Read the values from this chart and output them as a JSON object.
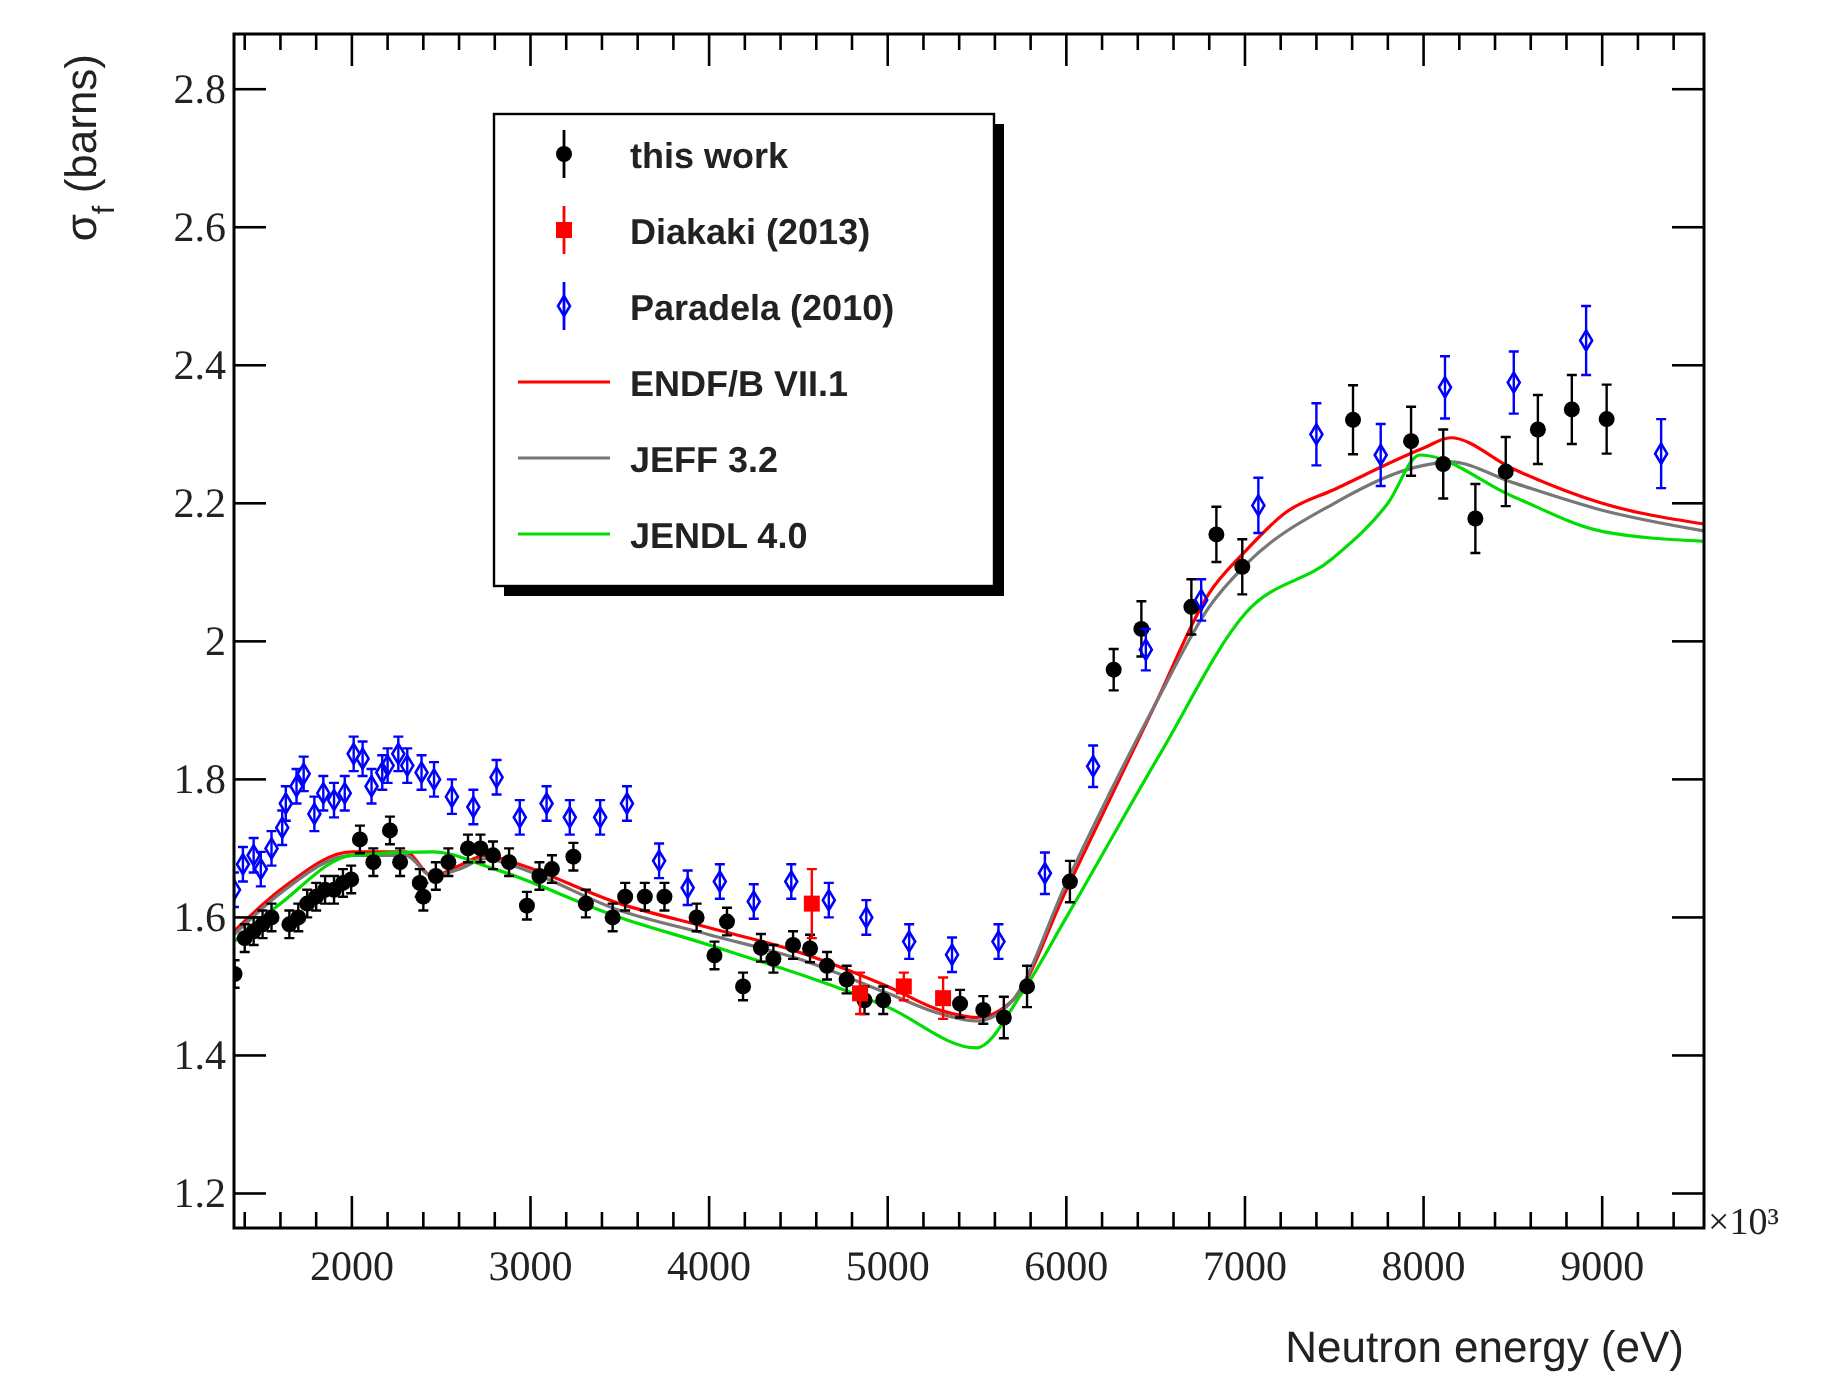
{
  "chart_data": {
    "type": "scatter",
    "xlabel": "Neutron energy (eV)",
    "ylabel": "σ$_{f}$ (barns)",
    "annotations": [
      "×10³"
    ],
    "xlim": [
      1340,
      9570
    ],
    "ylim": [
      1.15,
      2.88
    ],
    "xticks": [
      {
        "value": 1400,
        "label": null
      },
      {
        "value": 1600,
        "label": null
      },
      {
        "value": 1800,
        "label": null
      },
      2000,
      {
        "value": 2200,
        "label": null
      },
      {
        "value": 2400,
        "label": null
      },
      {
        "value": 2600,
        "label": null
      },
      {
        "value": 2800,
        "label": null
      },
      3000,
      {
        "value": 3200,
        "label": null
      },
      {
        "value": 3400,
        "label": null
      },
      {
        "value": 3600,
        "label": null
      },
      {
        "value": 3800,
        "label": null
      },
      4000,
      {
        "value": 4200,
        "label": null
      },
      {
        "value": 4400,
        "label": null
      },
      {
        "value": 4600,
        "label": null
      },
      {
        "value": 4800,
        "label": null
      },
      5000,
      {
        "value": 5200,
        "label": null
      },
      {
        "value": 5400,
        "label": null
      },
      {
        "value": 5600,
        "label": null
      },
      {
        "value": 5800,
        "label": null
      },
      6000,
      {
        "value": 6200,
        "label": null
      },
      {
        "value": 6400,
        "label": null
      },
      {
        "value": 6600,
        "label": null
      },
      {
        "value": 6800,
        "label": null
      },
      7000,
      {
        "value": 7200,
        "label": null
      },
      {
        "value": 7400,
        "label": null
      },
      {
        "value": 7600,
        "label": null
      },
      {
        "value": 7800,
        "label": null
      },
      8000,
      {
        "value": 8200,
        "label": null
      },
      {
        "value": 8400,
        "label": null
      },
      {
        "value": 8600,
        "label": null
      },
      {
        "value": 8800,
        "label": null
      },
      9000,
      {
        "value": 9200,
        "label": null
      },
      {
        "value": 9400,
        "label": null
      }
    ],
    "yticks": [
      1.2,
      1.4,
      1.6,
      1.8,
      2,
      2.2,
      2.4,
      2.6,
      2.8
    ],
    "grid": false,
    "legend": "top left",
    "series": [
      {
        "name": "this work",
        "color": "#000000",
        "marker": "circle",
        "x": [
          1343,
          1400,
          1450,
          1500,
          1550,
          1650,
          1700,
          1750,
          1800,
          1850,
          1900,
          1950,
          1996,
          2045,
          2120,
          2213,
          2270,
          2380,
          2400,
          2470,
          2540,
          2650,
          2720,
          2790,
          2880,
          2980,
          3050,
          3120,
          3240,
          3310,
          3460,
          3530,
          3640,
          3750,
          3930,
          4030,
          4100,
          4190,
          4290,
          4360,
          4470,
          4565,
          4660,
          4770,
          4870,
          4975,
          5405,
          5535,
          5650,
          5780,
          6020,
          6265,
          6420,
          6700,
          6840,
          6985,
          7605,
          7930,
          8110,
          8290,
          8460,
          8640,
          8830,
          9025
        ],
        "values": [
          1.518,
          1.57,
          1.58,
          1.59,
          1.6,
          1.59,
          1.6,
          1.62,
          1.63,
          1.64,
          1.64,
          1.65,
          1.655,
          1.713,
          1.68,
          1.726,
          1.68,
          1.65,
          1.63,
          1.66,
          1.68,
          1.7,
          1.7,
          1.69,
          1.68,
          1.617,
          1.66,
          1.67,
          1.688,
          1.62,
          1.6,
          1.63,
          1.63,
          1.63,
          1.6,
          1.545,
          1.594,
          1.5,
          1.556,
          1.54,
          1.56,
          1.555,
          1.53,
          1.51,
          1.48,
          1.48,
          1.475,
          1.466,
          1.455,
          1.5,
          1.652,
          1.959,
          2.018,
          2.05,
          2.155,
          2.108,
          2.321,
          2.29,
          2.257,
          2.178,
          2.246,
          2.307,
          2.336,
          2.322
        ],
        "errors": [
          0.02,
          0.02,
          0.02,
          0.02,
          0.02,
          0.02,
          0.02,
          0.02,
          0.02,
          0.02,
          0.02,
          0.02,
          0.02,
          0.02,
          0.02,
          0.02,
          0.02,
          0.02,
          0.02,
          0.02,
          0.02,
          0.02,
          0.02,
          0.02,
          0.02,
          0.02,
          0.02,
          0.02,
          0.02,
          0.02,
          0.02,
          0.02,
          0.02,
          0.02,
          0.02,
          0.02,
          0.02,
          0.02,
          0.02,
          0.02,
          0.02,
          0.02,
          0.02,
          0.02,
          0.02,
          0.02,
          0.02,
          0.02,
          0.03,
          0.03,
          0.03,
          0.03,
          0.04,
          0.04,
          0.04,
          0.04,
          0.05,
          0.05,
          0.05,
          0.05,
          0.05,
          0.05,
          0.05,
          0.05
        ]
      },
      {
        "name": "Diakaki (2013)",
        "color": "#ff0000",
        "marker": "square",
        "x": [
          4575,
          4845,
          5090,
          5310
        ],
        "values": [
          1.62,
          1.49,
          1.5,
          1.483
        ],
        "errors": [
          0.05,
          0.03,
          0.02,
          0.03
        ]
      },
      {
        "name": "Paradela (2010)",
        "color": "#0000ff",
        "marker": "diamond",
        "x": [
          1340,
          1390,
          1450,
          1490,
          1550,
          1610,
          1630,
          1690,
          1730,
          1790,
          1840,
          1900,
          1960,
          2010,
          2060,
          2110,
          2170,
          2200,
          2260,
          2310,
          2390,
          2460,
          2560,
          2680,
          2810,
          2940,
          3090,
          3220,
          3390,
          3540,
          3720,
          3880,
          4060,
          4250,
          4460,
          4670,
          4880,
          5120,
          5360,
          5620,
          5880,
          6150,
          6445,
          6755,
          7075,
          7400,
          7760,
          8120,
          8505,
          8910,
          9330
        ],
        "values": [
          1.64,
          1.677,
          1.69,
          1.67,
          1.7,
          1.73,
          1.765,
          1.79,
          1.808,
          1.75,
          1.78,
          1.77,
          1.78,
          1.837,
          1.83,
          1.79,
          1.81,
          1.82,
          1.837,
          1.82,
          1.81,
          1.8,
          1.775,
          1.76,
          1.803,
          1.745,
          1.765,
          1.745,
          1.745,
          1.765,
          1.682,
          1.643,
          1.652,
          1.623,
          1.652,
          1.625,
          1.6,
          1.565,
          1.546,
          1.565,
          1.664,
          1.819,
          1.988,
          2.06,
          2.197,
          2.3,
          2.27,
          2.368,
          2.375,
          2.436,
          2.272
        ],
        "errors": [
          0.025,
          0.025,
          0.025,
          0.025,
          0.025,
          0.025,
          0.025,
          0.025,
          0.025,
          0.025,
          0.025,
          0.025,
          0.025,
          0.025,
          0.025,
          0.025,
          0.025,
          0.025,
          0.025,
          0.025,
          0.025,
          0.025,
          0.025,
          0.025,
          0.025,
          0.025,
          0.025,
          0.025,
          0.025,
          0.025,
          0.025,
          0.025,
          0.025,
          0.025,
          0.025,
          0.025,
          0.025,
          0.025,
          0.025,
          0.025,
          0.03,
          0.03,
          0.03,
          0.03,
          0.04,
          0.045,
          0.045,
          0.045,
          0.045,
          0.05,
          0.05
        ]
      },
      {
        "type": "line",
        "name": "ENDF/B VII.1",
        "color": "#ff0000",
        "marker": "none",
        "x": [
          1340,
          1600,
          2000,
          2300,
          2450,
          2600,
          2750,
          2900,
          3500,
          4000,
          4500,
          5000,
          5300,
          5500,
          5700,
          6000,
          6500,
          6800,
          7000,
          7230,
          7500,
          8000,
          8150,
          8500,
          9000,
          9570
        ],
        "values": [
          1.58,
          1.64,
          1.695,
          1.695,
          1.66,
          1.675,
          1.69,
          1.68,
          1.62,
          1.585,
          1.55,
          1.5,
          1.465,
          1.455,
          1.48,
          1.64,
          1.91,
          2.07,
          2.13,
          2.187,
          2.22,
          2.28,
          2.295,
          2.25,
          2.2,
          2.17
        ]
      },
      {
        "type": "line",
        "name": "JEFF 3.2",
        "color": "#777777",
        "marker": "none",
        "x": [
          1340,
          1600,
          2000,
          2300,
          2450,
          2600,
          2750,
          2900,
          3500,
          4000,
          4500,
          5000,
          5300,
          5500,
          5700,
          6000,
          6500,
          6800,
          7000,
          7500,
          8000,
          8150,
          8500,
          9000,
          9570
        ],
        "values": [
          1.575,
          1.635,
          1.69,
          1.69,
          1.66,
          1.67,
          1.685,
          1.675,
          1.61,
          1.575,
          1.54,
          1.49,
          1.46,
          1.45,
          1.48,
          1.65,
          1.91,
          2.05,
          2.11,
          2.2,
          2.255,
          2.26,
          2.23,
          2.19,
          2.16
        ]
      },
      {
        "type": "line",
        "name": "JENDL 4.0",
        "color": "#00dd00",
        "marker": "none",
        "x": [
          1340,
          1600,
          2000,
          2450,
          2800,
          3500,
          4000,
          5000,
          5495,
          5750,
          6000,
          6525,
          7000,
          7490,
          7800,
          7980,
          8500,
          9005,
          9570
        ],
        "values": [
          1.565,
          1.62,
          1.69,
          1.695,
          1.67,
          1.6,
          1.56,
          1.47,
          1.411,
          1.49,
          1.6,
          1.837,
          2.04,
          2.12,
          2.2,
          2.27,
          2.21,
          2.159,
          2.145
        ]
      }
    ]
  }
}
